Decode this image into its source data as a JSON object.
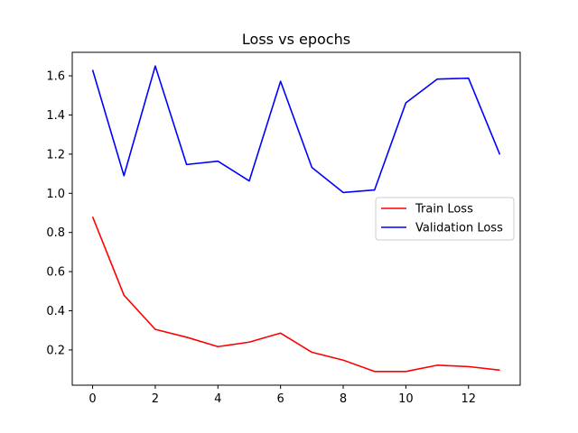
{
  "chart_data": {
    "type": "line",
    "title": "Loss vs epochs",
    "xlabel": "",
    "ylabel": "",
    "x": [
      0,
      1,
      2,
      3,
      4,
      5,
      6,
      7,
      8,
      9,
      10,
      11,
      12,
      13
    ],
    "series": [
      {
        "name": "Train Loss",
        "color": "#ff0000",
        "values": [
          0.88,
          0.48,
          0.305,
          0.265,
          0.217,
          0.24,
          0.286,
          0.188,
          0.148,
          0.09,
          0.09,
          0.122,
          0.115,
          0.097
        ]
      },
      {
        "name": "Validation Loss",
        "color": "#0000ff",
        "values": [
          1.63,
          1.09,
          1.65,
          1.147,
          1.164,
          1.063,
          1.572,
          1.132,
          1.004,
          1.017,
          1.462,
          1.583,
          1.588,
          1.198
        ]
      }
    ],
    "xlim": [
      -0.65,
      13.65
    ],
    "ylim": [
      0.02,
      1.72
    ],
    "xticks": [
      0,
      2,
      4,
      6,
      8,
      10,
      12
    ],
    "xtick_labels": [
      "0",
      "2",
      "4",
      "6",
      "8",
      "10",
      "12"
    ],
    "yticks": [
      0.2,
      0.4,
      0.6,
      0.8,
      1.0,
      1.2,
      1.4,
      1.6
    ],
    "ytick_labels": [
      "0.2",
      "0.4",
      "0.6",
      "0.8",
      "1.0",
      "1.2",
      "1.4",
      "1.6"
    ],
    "grid": false,
    "legend_position": "center-right"
  }
}
